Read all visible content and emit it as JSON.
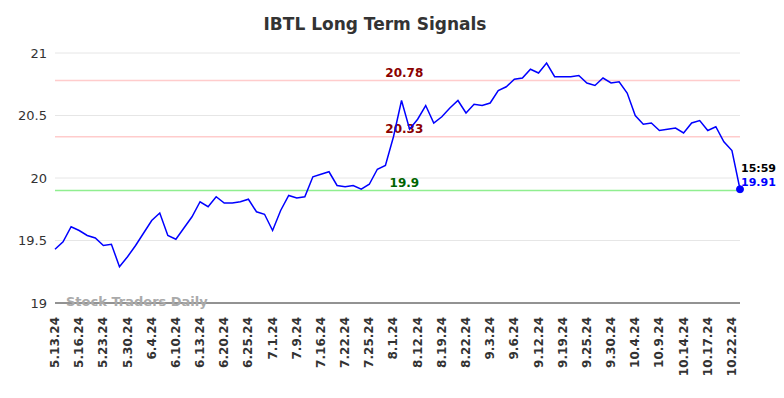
{
  "chart_data": {
    "type": "line",
    "title": "IBTL Long Term Signals",
    "watermark": "Stock Traders Daily",
    "color": "#0000ff",
    "ylim": [
      19,
      21
    ],
    "yticks": [
      19,
      19.5,
      20,
      20.5,
      21
    ],
    "grid": true,
    "categories": [
      "5.13.24",
      null,
      null,
      "5.16.24",
      null,
      null,
      "5.23.24",
      null,
      null,
      "5.30.24",
      null,
      null,
      "6.4.24",
      null,
      null,
      "6.10.24",
      null,
      null,
      "6.13.24",
      null,
      null,
      "6.20.24",
      null,
      null,
      "6.25.24",
      null,
      null,
      "7.1.24",
      null,
      null,
      "7.9.24",
      null,
      null,
      "7.16.24",
      null,
      null,
      "7.22.24",
      null,
      null,
      "7.25.24",
      null,
      null,
      "8.1.24",
      null,
      null,
      "8.12.24",
      null,
      null,
      "8.19.24",
      null,
      null,
      "8.22.24",
      null,
      null,
      "9.3.24",
      null,
      null,
      "9.6.24",
      null,
      null,
      "9.12.24",
      null,
      null,
      "9.19.24",
      null,
      null,
      "9.25.24",
      null,
      null,
      "9.30.24",
      null,
      null,
      "10.4.24",
      null,
      null,
      "10.9.24",
      null,
      null,
      "10.14.24",
      null,
      null,
      "10.17.24",
      null,
      null,
      "10.22.24",
      null
    ],
    "values": [
      19.43,
      19.49,
      19.61,
      19.58,
      19.54,
      19.52,
      19.46,
      19.47,
      19.29,
      19.37,
      19.46,
      19.56,
      19.66,
      19.72,
      19.54,
      19.51,
      19.6,
      19.69,
      19.81,
      19.77,
      19.85,
      19.8,
      19.8,
      19.81,
      19.83,
      19.73,
      19.71,
      19.58,
      19.74,
      19.86,
      19.84,
      19.85,
      20.01,
      20.03,
      20.05,
      19.94,
      19.93,
      19.94,
      19.91,
      19.95,
      20.07,
      20.1,
      20.33,
      20.62,
      20.39,
      20.47,
      20.58,
      20.44,
      20.49,
      20.56,
      20.62,
      20.52,
      20.59,
      20.58,
      20.6,
      20.7,
      20.73,
      20.79,
      20.8,
      20.87,
      20.84,
      20.92,
      20.81,
      20.81,
      20.81,
      20.82,
      20.76,
      20.74,
      20.8,
      20.76,
      20.77,
      20.68,
      20.5,
      20.43,
      20.44,
      20.38,
      20.39,
      20.4,
      20.36,
      20.44,
      20.46,
      20.38,
      20.41,
      20.29,
      20.22,
      19.91
    ],
    "reference_lines": [
      {
        "value": 20.78,
        "color": "#ffcccc",
        "label_color": "#8b0000"
      },
      {
        "value": 20.33,
        "color": "#ffcccc",
        "label_color": "#8b0000"
      },
      {
        "value": 19.9,
        "color": "#90ee90",
        "label_color": "#006400"
      }
    ],
    "last_point": {
      "time": "15:59",
      "value": 19.91
    }
  }
}
